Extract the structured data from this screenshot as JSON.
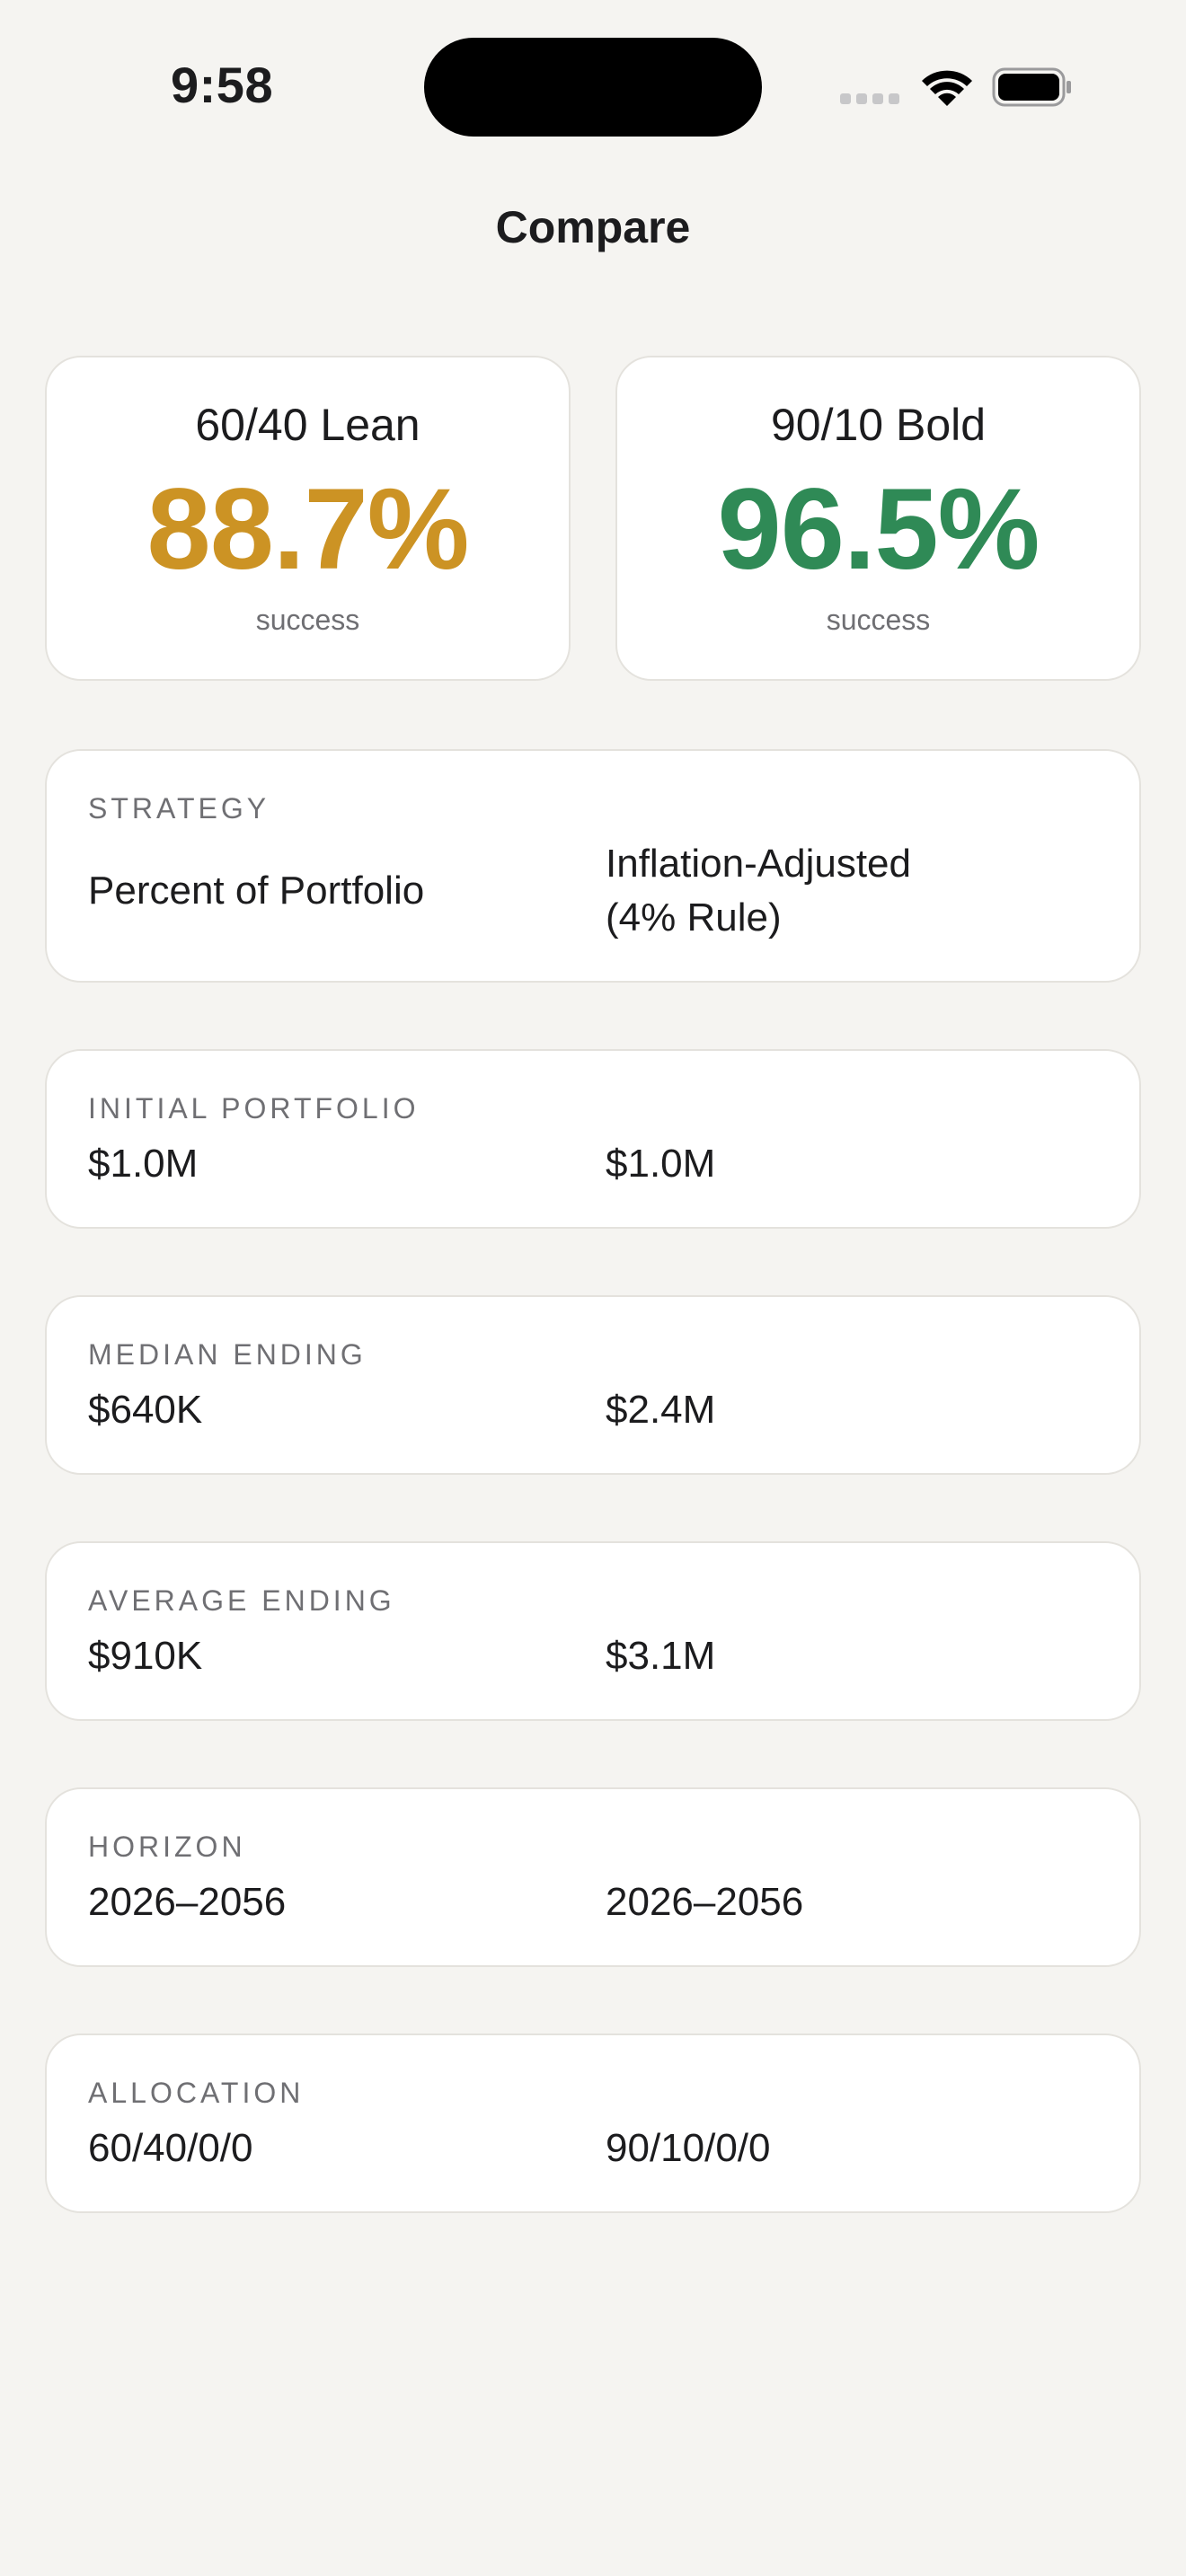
{
  "status_bar": {
    "time": "9:58",
    "icons": [
      "signal-dots-icon",
      "wifi-icon",
      "battery-icon"
    ]
  },
  "nav": {
    "title": "Compare"
  },
  "colors": {
    "lean_accent": "#cc9324",
    "bold_accent": "#2f8a56",
    "background": "#f5f4f1",
    "card": "#ffffff"
  },
  "summary": [
    {
      "name": "60/40 Lean",
      "value": "88.7%",
      "label": "success"
    },
    {
      "name": "90/10 Bold",
      "value": "96.5%",
      "label": "success"
    }
  ],
  "details": {
    "strategy": {
      "label": "STRATEGY",
      "left": "Percent of Portfolio",
      "right": "Inflation-Adjusted (4% Rule)"
    },
    "initial": {
      "label": "INITIAL PORTFOLIO",
      "left": "$1.0M",
      "right": "$1.0M"
    },
    "median": {
      "label": "MEDIAN ENDING",
      "left": "$640K",
      "right": "$2.4M"
    },
    "average": {
      "label": "AVERAGE ENDING",
      "left": "$910K",
      "right": "$3.1M"
    },
    "horizon": {
      "label": "HORIZON",
      "left": "2026–2056",
      "right": "2026–2056"
    },
    "allocation": {
      "label": "ALLOCATION",
      "left": "60/40/0/0",
      "right": "90/10/0/0"
    }
  }
}
